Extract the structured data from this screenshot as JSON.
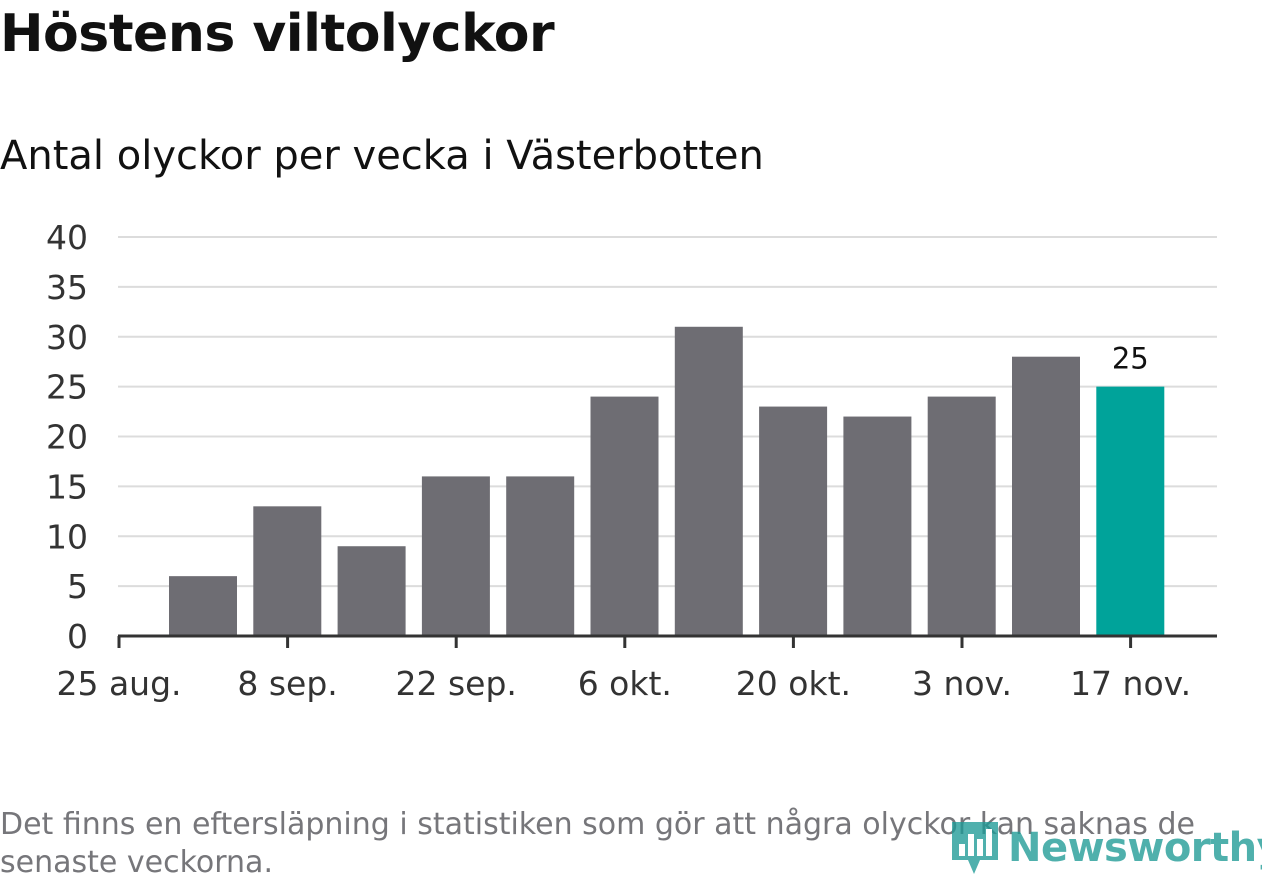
{
  "header": {
    "title": "Höstens viltolyckor",
    "subtitle": "Antal olyckor per vecka i Västerbotten"
  },
  "chart_data": {
    "type": "bar",
    "title": "Höstens viltolyckor",
    "subtitle": "Antal olyckor per vecka i Västerbotten",
    "xlabel": "",
    "ylabel": "",
    "ylim": [
      0,
      40
    ],
    "yticks": [
      0,
      5,
      10,
      15,
      20,
      25,
      30,
      35,
      40
    ],
    "x_tick_labels": [
      "25 aug.",
      "8 sep.",
      "22 sep.",
      "6 okt.",
      "20 okt.",
      "3 nov.",
      "17 nov."
    ],
    "values": [
      6,
      13,
      9,
      16,
      16,
      24,
      31,
      23,
      22,
      24,
      28,
      25
    ],
    "highlight_index": 11,
    "annotations": [
      {
        "index": 11,
        "text": "25"
      }
    ],
    "grid": true,
    "colors": {
      "bar": "#6e6d73",
      "highlight": "#00a39a",
      "grid": "#dcdcdc",
      "axis": "#333333"
    }
  },
  "footer": {
    "note": "Det finns en eftersläpning i statistiken som gör att några olyckor kan saknas de senaste veckorna.",
    "logo_text": "Newsworthy",
    "logo_icon": "bar-chart-pin-icon"
  }
}
